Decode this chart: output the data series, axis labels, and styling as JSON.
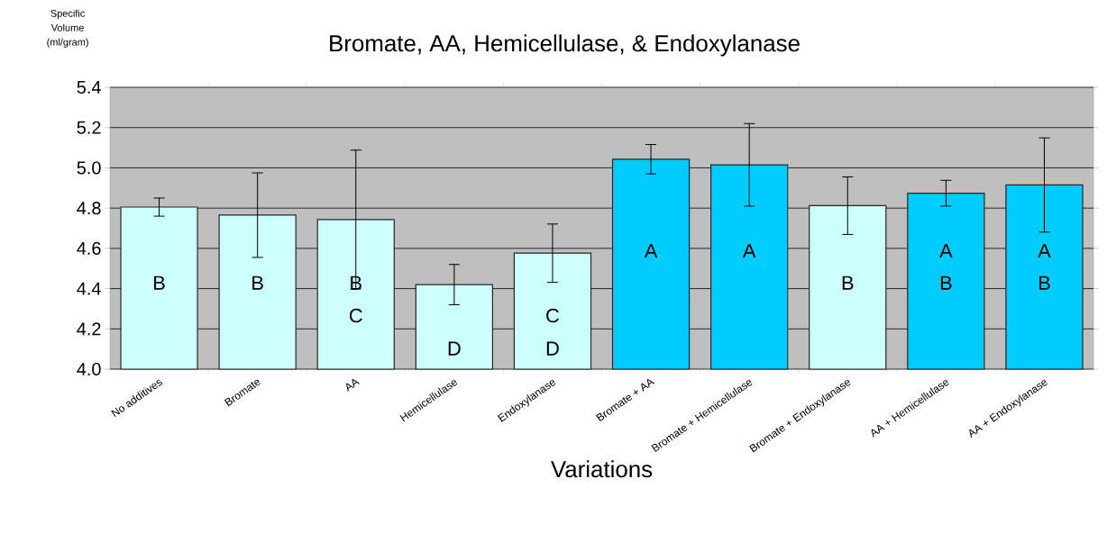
{
  "chart_data": {
    "type": "bar",
    "title": "Bromate, AA, Hemicellulase, & Endoxylanase",
    "ylabel": "Specific Volume (ml/gram)",
    "xlabel": "Variations",
    "categories": [
      "No additives",
      "Bromate",
      "AA",
      "Hemicellulase",
      "Endoxylanase",
      "Bromate + AA",
      "Bromate + Hemicellulase",
      "Bromate + Endoxylanase",
      "AA + Hemicellulase",
      "AA + Endoxylanase"
    ],
    "values": [
      4.805,
      4.765,
      4.743,
      4.42,
      4.576,
      5.043,
      5.015,
      4.812,
      4.874,
      4.915
    ],
    "errors": [
      0.045,
      0.21,
      0.345,
      0.1,
      0.145,
      0.073,
      0.205,
      0.143,
      0.064,
      0.234
    ],
    "colors": [
      "#ccffff",
      "#ccffff",
      "#ccffff",
      "#ccffff",
      "#ccffff",
      "#00ccff",
      "#00ccff",
      "#ccffff",
      "#00ccff",
      "#00ccff"
    ],
    "ylim": [
      4.0,
      5.4
    ],
    "yticks": [
      {
        "value": 4.0,
        "label": "4.0"
      },
      {
        "value": 4.2,
        "label": "4.2"
      },
      {
        "value": 4.4,
        "label": "4.4"
      },
      {
        "value": 4.6,
        "label": "4.6"
      },
      {
        "value": 4.8,
        "label": "4.8"
      },
      {
        "value": 5.0,
        "label": "5.0"
      },
      {
        "value": 5.2,
        "label": "5.2"
      },
      {
        "value": 5.4,
        "label": "5.4"
      }
    ],
    "grid": "y",
    "annotations": [
      "B",
      "B",
      "B",
      "C",
      "D",
      "C",
      "D",
      "A",
      "A",
      "B",
      "A",
      "B",
      "A",
      "B"
    ]
  }
}
